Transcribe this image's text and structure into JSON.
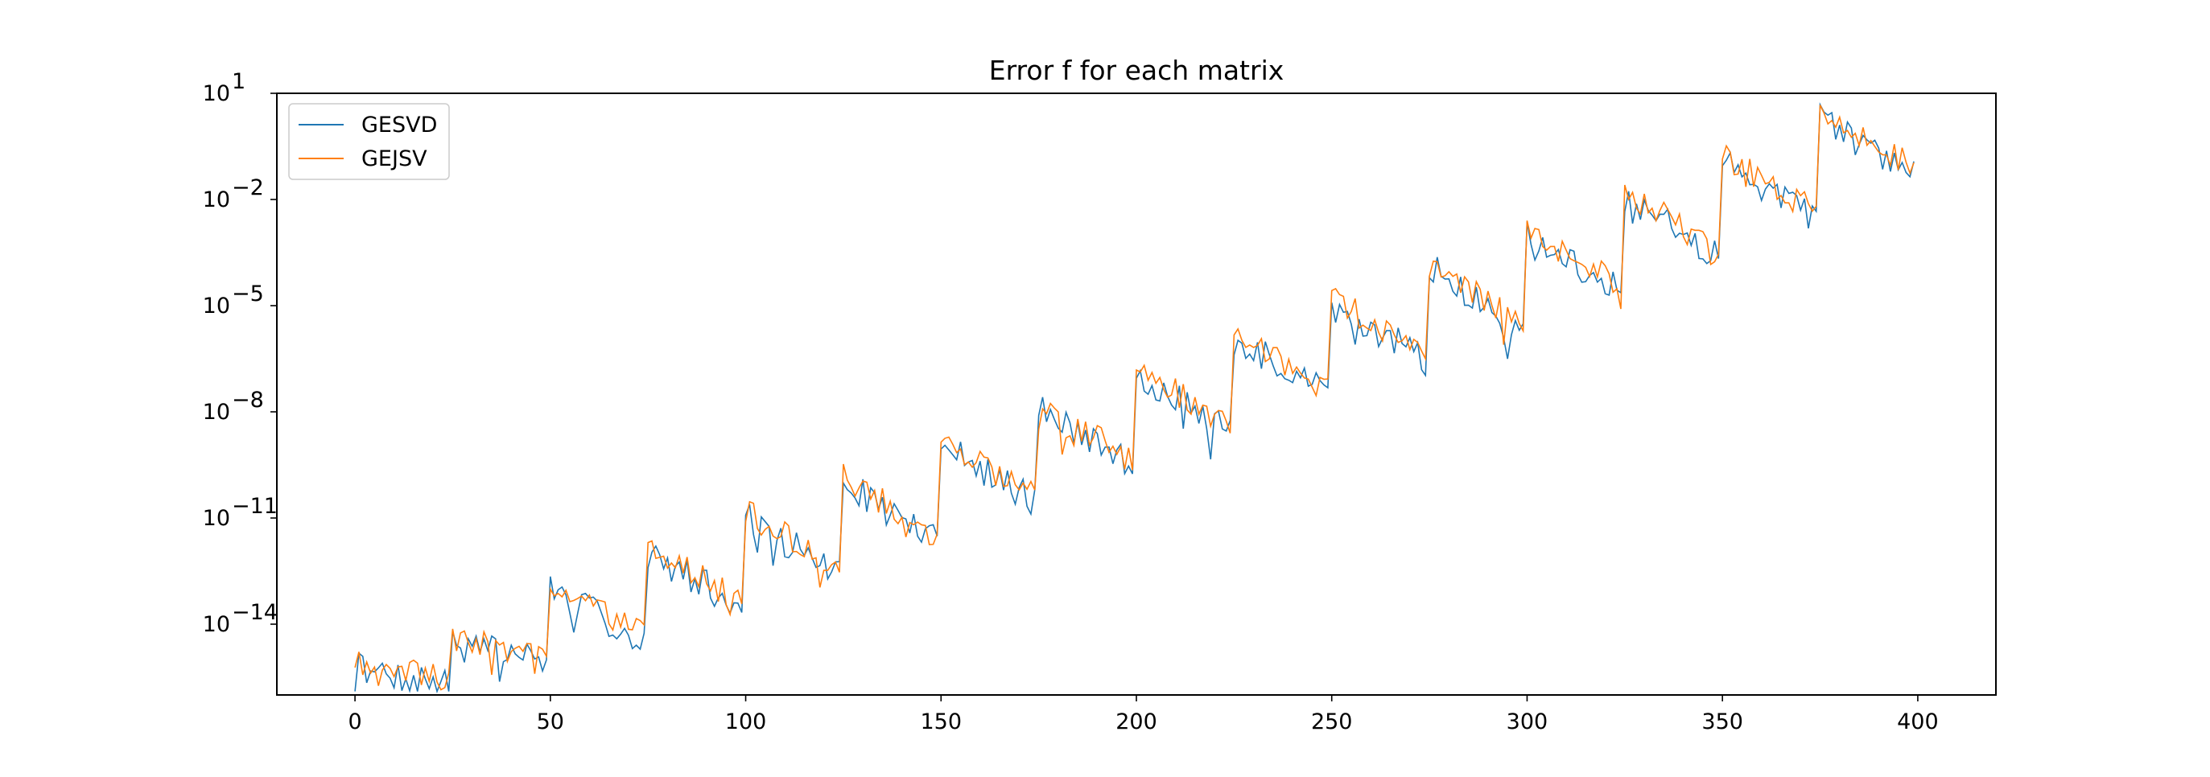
{
  "chart_data": {
    "type": "line",
    "title": "Error f for each matrix",
    "xlabel": "",
    "ylabel": "",
    "y_scale": "log",
    "grid": false,
    "legend_position": "upper left",
    "xlim": [
      -20,
      420
    ],
    "ylim": [
      1e-16,
      10
    ],
    "x_ticks": [
      0,
      50,
      100,
      150,
      200,
      250,
      300,
      350,
      400
    ],
    "x_tick_labels": [
      "0",
      "50",
      "100",
      "150",
      "200",
      "250",
      "300",
      "350",
      "400"
    ],
    "y_tick_exponents": [
      1,
      -2,
      -5,
      -8,
      -11,
      -14
    ],
    "y_tick_bases": [
      "10",
      "10",
      "10",
      "10",
      "10",
      "10"
    ],
    "y_tick_superscripts": [
      "1",
      "−2",
      "−5",
      "−8",
      "−11",
      "−14"
    ],
    "x_range": [
      0,
      399
    ],
    "segment_length": 25,
    "segment_start_log10": [
      -15.1,
      -14.5,
      -12.9,
      -11.9,
      -10.9,
      -9.9,
      -8.85,
      -7.85,
      -6.85,
      -5.85,
      -4.85,
      -3.85,
      -2.85,
      -1.85,
      -0.85,
      0.35
    ],
    "segment_decay_log10": [
      0.6,
      0.4,
      1.5,
      1.5,
      1.6,
      1.7,
      1.6,
      1.6,
      1.6,
      1.6,
      1.6,
      1.7,
      1.7,
      1.7,
      1.6,
      1.5
    ],
    "series": [
      {
        "name": "GESVD",
        "color": "#1f77b4",
        "noise_seed": 7,
        "noise_amp": 0.45,
        "offset": -0.08
      },
      {
        "name": "GEJSV",
        "color": "#ff7f0e",
        "noise_seed": 19,
        "noise_amp": 0.4,
        "offset": 0.08
      }
    ]
  }
}
